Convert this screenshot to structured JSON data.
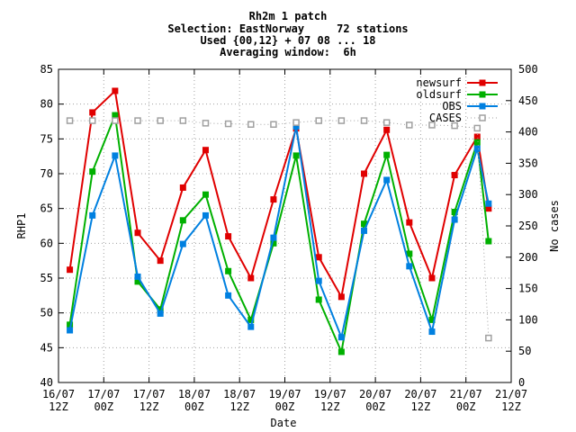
{
  "chart_data": {
    "type": "line",
    "title_lines": [
      "Rh2m 1 patch",
      "Selection: EastNorway     72 stations",
      "Used {00,12} + 07 08 ... 18",
      "Averaging window:  6h"
    ],
    "xlabel": "Date",
    "ylabel": "RHP1",
    "y2label": "No cases",
    "ylim": [
      40,
      85
    ],
    "y2lim": [
      0,
      500
    ],
    "xlim": [
      0,
      10
    ],
    "yticks": [
      40,
      45,
      50,
      55,
      60,
      65,
      70,
      75,
      80,
      85
    ],
    "y2ticks": [
      0,
      50,
      100,
      150,
      200,
      250,
      300,
      350,
      400,
      450,
      500
    ],
    "xticks": [
      {
        "top": "16/07",
        "bottom": "12Z"
      },
      {
        "top": "17/07",
        "bottom": "00Z"
      },
      {
        "top": "17/07",
        "bottom": "12Z"
      },
      {
        "top": "18/07",
        "bottom": "00Z"
      },
      {
        "top": "18/07",
        "bottom": "12Z"
      },
      {
        "top": "19/07",
        "bottom": "00Z"
      },
      {
        "top": "19/07",
        "bottom": "12Z"
      },
      {
        "top": "20/07",
        "bottom": "00Z"
      },
      {
        "top": "20/07",
        "bottom": "12Z"
      },
      {
        "top": "21/07",
        "bottom": "00Z"
      },
      {
        "top": "21/07",
        "bottom": "12Z"
      }
    ],
    "x": [
      0.25,
      0.75,
      1.25,
      1.75,
      2.25,
      2.75,
      3.25,
      3.75,
      4.25,
      4.75,
      5.25,
      5.75,
      6.25,
      6.75,
      7.25,
      7.75,
      8.25,
      8.75,
      9.25,
      9.5
    ],
    "grid": true,
    "legend_position": "top-right",
    "series": [
      {
        "name": "newsurf",
        "color": "#e00000",
        "marker": "square",
        "axis": "left",
        "values": [
          56.2,
          78.8,
          81.9,
          61.5,
          57.5,
          68.0,
          73.4,
          61.0,
          55.0,
          66.3,
          76.5,
          58.0,
          52.3,
          70.0,
          76.3,
          63.0,
          55.0,
          69.8,
          75.3,
          65.0
        ]
      },
      {
        "name": "oldsurf",
        "color": "#00b000",
        "marker": "square",
        "axis": "left",
        "values": [
          48.3,
          70.3,
          78.4,
          54.5,
          50.5,
          63.3,
          67.0,
          56.0,
          49.0,
          60.0,
          72.6,
          51.9,
          44.4,
          62.8,
          72.7,
          58.5,
          49.0,
          64.5,
          74.5,
          60.3
        ]
      },
      {
        "name": "OBS",
        "color": "#0080e0",
        "marker": "square",
        "axis": "left",
        "values": [
          47.5,
          64.0,
          72.6,
          55.2,
          49.9,
          59.9,
          64.0,
          52.5,
          48.0,
          60.8,
          76.8,
          54.6,
          46.5,
          61.8,
          69.1,
          56.7,
          47.3,
          63.4,
          73.6,
          65.7
        ]
      },
      {
        "name": "CASES",
        "color": "#a0a0a0",
        "marker": "open-square",
        "axis": "right",
        "dotted": true,
        "values": [
          418,
          418,
          418,
          418,
          418,
          418,
          414,
          413,
          412,
          412,
          415,
          418,
          418,
          418,
          415,
          411,
          411,
          410,
          406,
          71
        ]
      }
    ]
  }
}
